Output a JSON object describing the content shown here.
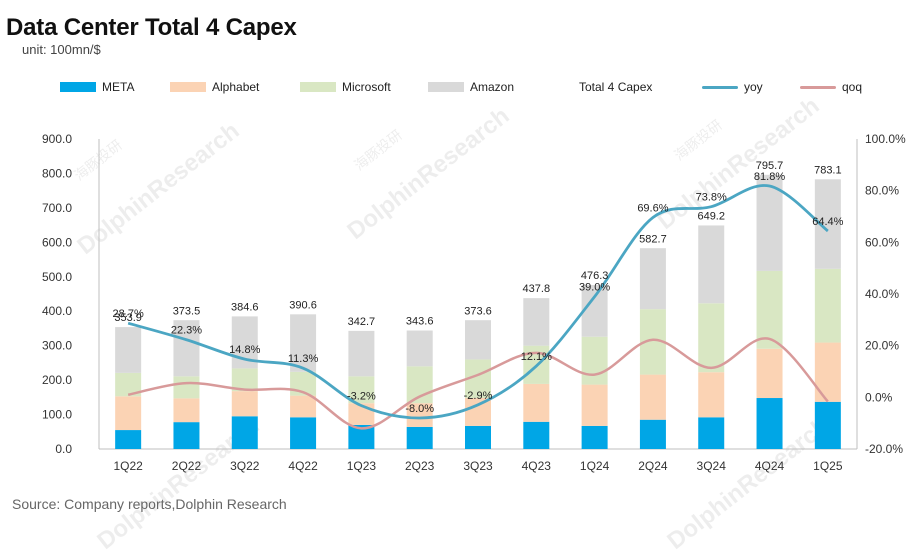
{
  "header": {
    "title": "Data Center Total 4 Capex",
    "subtitle": "unit: 100mn/$"
  },
  "footer": {
    "source": "Source: Company reports,Dolphin Research"
  },
  "watermark": {
    "en": "DolphinResearch",
    "cn": "海豚投研"
  },
  "legend": [
    {
      "label": "META",
      "kind": "box",
      "color": "#00A6E6"
    },
    {
      "label": "Alphabet",
      "kind": "box",
      "color": "#FBD3B4"
    },
    {
      "label": "Microsoft",
      "kind": "box",
      "color": "#D9E7C3"
    },
    {
      "label": "Amazon",
      "kind": "box",
      "color": "#D9D9D9"
    },
    {
      "label": "Total 4 Capex",
      "kind": "none",
      "color": ""
    },
    {
      "label": "yoy",
      "kind": "line",
      "color": "#4BA6C3"
    },
    {
      "label": "qoq",
      "kind": "line",
      "color": "#D89A9A"
    }
  ],
  "chart_data": {
    "type": "bar",
    "stacked": true,
    "categories": [
      "1Q22",
      "2Q22",
      "3Q22",
      "4Q22",
      "1Q23",
      "2Q23",
      "3Q23",
      "4Q23",
      "1Q24",
      "2Q24",
      "3Q24",
      "4Q24",
      "1Q25"
    ],
    "series": [
      {
        "name": "META",
        "color": "#00A6E6",
        "values": [
          55,
          78,
          95,
          92,
          70,
          64,
          67,
          79,
          67,
          85,
          92,
          148,
          137
        ]
      },
      {
        "name": "Alphabet",
        "color": "#FBD3B4",
        "values": [
          98,
          69,
          73,
          63,
          63,
          69,
          81,
          110,
          120,
          131,
          131,
          143,
          172
        ]
      },
      {
        "name": "Microsoft",
        "color": "#D9E7C3",
        "values": [
          68,
          64,
          66,
          69,
          78,
          107,
          112,
          111,
          139,
          190,
          200,
          226,
          214
        ]
      },
      {
        "name": "Amazon",
        "color": "#D9D9D9",
        "values": [
          133,
          163,
          151,
          167,
          132,
          104,
          114,
          138,
          150,
          177,
          226,
          279,
          260
        ]
      }
    ],
    "totals_label": "Total 4 Capex",
    "totals": [
      353.9,
      373.5,
      384.6,
      390.6,
      342.7,
      343.6,
      373.6,
      437.8,
      476.3,
      582.7,
      649.2,
      795.7,
      783.1
    ],
    "total_labels": [
      "353.9",
      "373.5",
      "384.6",
      "390.6",
      "342.7",
      "343.6",
      "373.6",
      "437.8",
      "476.3",
      "582.7",
      "649.2",
      "795.7",
      "783.1"
    ],
    "yoy": {
      "name": "yoy",
      "axis": "right",
      "color": "#4BA6C3",
      "values": [
        28.7,
        22.3,
        14.8,
        11.3,
        -3.2,
        -8.0,
        -2.9,
        12.1,
        39.0,
        69.6,
        73.8,
        81.8,
        64.4
      ],
      "labels": [
        "28.7%",
        "22.3%",
        "14.8%",
        "11.3%",
        "-3.2%",
        "-8.0%",
        "-2.9%",
        "12.1%",
        "39.0%",
        "69.6%",
        "73.8%",
        "81.8%",
        "64.4%"
      ]
    },
    "qoq": {
      "name": "qoq",
      "axis": "right",
      "color": "#D89A9A",
      "values": [
        1,
        5.5,
        3,
        2,
        -12,
        0.3,
        8.7,
        17.2,
        8.8,
        22.3,
        11.4,
        22.6,
        -1.6
      ]
    },
    "y_left": {
      "min": 0,
      "max": 900,
      "step": 100,
      "tick_labels": [
        "0.0",
        "100.0",
        "200.0",
        "300.0",
        "400.0",
        "500.0",
        "600.0",
        "700.0",
        "800.0",
        "900.0"
      ]
    },
    "y_right": {
      "min": -20,
      "max": 100,
      "step": 20,
      "tick_labels": [
        "-20.0%",
        "0.0%",
        "20.0%",
        "40.0%",
        "60.0%",
        "80.0%",
        "100.0%"
      ]
    },
    "grid": false,
    "legend_position": "top"
  }
}
